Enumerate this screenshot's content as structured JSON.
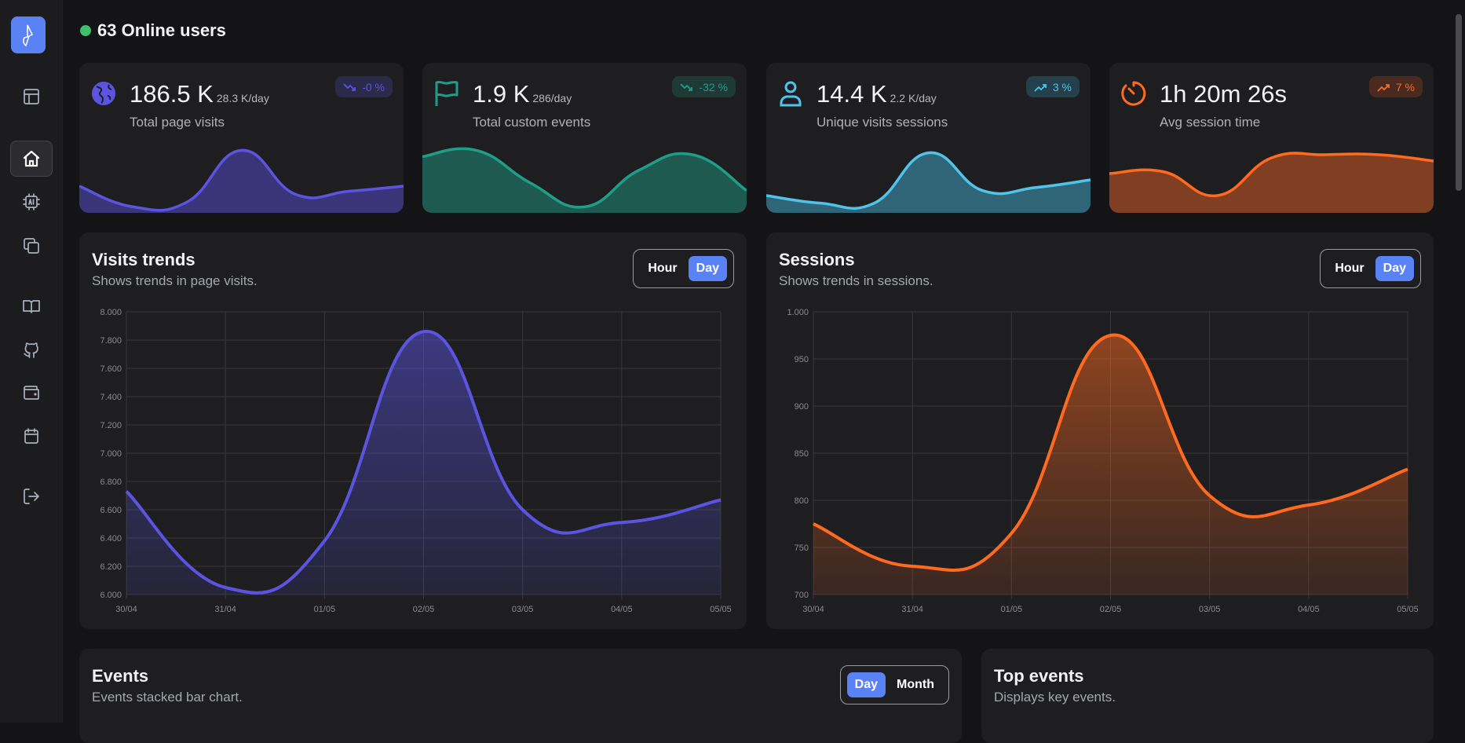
{
  "header": {
    "online_count_label": "63 Online users",
    "online_color": "#3fbf6b"
  },
  "sidebar": {
    "items": [
      {
        "name": "layout",
        "icon": "layout-icon"
      },
      {
        "name": "home",
        "icon": "home-icon",
        "active": true
      },
      {
        "name": "ai",
        "icon": "ai-chip-icon"
      },
      {
        "name": "copy",
        "icon": "copy-icon"
      },
      {
        "name": "docs",
        "icon": "book-icon"
      },
      {
        "name": "github",
        "icon": "github-icon"
      },
      {
        "name": "wallet",
        "icon": "wallet-icon"
      },
      {
        "name": "calendar",
        "icon": "calendar-icon"
      },
      {
        "name": "logout",
        "icon": "logout-icon"
      }
    ]
  },
  "cards": [
    {
      "value": "186.5 K",
      "per_day": "28.3 K/day",
      "label": "Total page visits",
      "badge": "-0 %",
      "trend": "down",
      "icon": "globe-icon",
      "color": "#5b54e0",
      "fill": "#3a3578",
      "badge_bg": "#2b2a4a",
      "spark": [
        0.35,
        0.02,
        0.1,
        0.92,
        0.22,
        0.27,
        0.35
      ]
    },
    {
      "value": "1.9 K",
      "per_day": "286/day",
      "label": "Total custom events",
      "badge": "-32 %",
      "trend": "down",
      "icon": "flag-icon",
      "color": "#1e9e88",
      "fill": "#1f5a50",
      "badge_bg": "#1d3a35",
      "spark": [
        0.82,
        0.92,
        0.4,
        0.02,
        0.6,
        0.85,
        0.28
      ]
    },
    {
      "value": "14.4 K",
      "per_day": "2.2 K/day",
      "label": "Unique visits sessions",
      "badge": "3 %",
      "trend": "up",
      "icon": "user-icon",
      "color": "#4fc3ea",
      "fill": "#306578",
      "badge_bg": "#24404c",
      "spark": [
        0.2,
        0.08,
        0.08,
        0.88,
        0.28,
        0.33,
        0.45
      ]
    },
    {
      "value": "1h 20m 26s",
      "per_day": "",
      "label": "Avg session time",
      "badge": "7 %",
      "trend": "up",
      "icon": "timer-icon",
      "color": "#ff6a1f",
      "fill": "#803f22",
      "badge_bg": "#4a2a1f",
      "spark": [
        0.55,
        0.58,
        0.2,
        0.8,
        0.85,
        0.85,
        0.75
      ]
    }
  ],
  "visits": {
    "title": "Visits trends",
    "subtitle": "Shows trends in page visits.",
    "toggle": [
      "Hour",
      "Day"
    ],
    "selected": "Day"
  },
  "sessions": {
    "title": "Sessions",
    "subtitle": "Shows trends in sessions.",
    "toggle": [
      "Hour",
      "Day"
    ],
    "selected": "Day"
  },
  "events": {
    "title": "Events",
    "subtitle": "Events stacked bar chart.",
    "toggle": [
      "Day",
      "Month"
    ],
    "selected": "Day"
  },
  "top_events": {
    "title": "Top events",
    "subtitle": "Displays key events."
  },
  "chart_data": [
    {
      "type": "line",
      "title": "",
      "xlabel": "",
      "ylabel": "",
      "categories": [
        "30/04",
        "31/04",
        "01/05",
        "02/05",
        "03/05",
        "04/05",
        "05/05"
      ],
      "values": [
        6730,
        6050,
        6380,
        7860,
        6600,
        6510,
        6670
      ],
      "ylim": [
        6000,
        8000
      ],
      "yticks": [
        "6.000",
        "6.200",
        "6.400",
        "6.600",
        "6.800",
        "7.000",
        "7.200",
        "7.400",
        "7.600",
        "7.800",
        "8.000"
      ],
      "grid": true,
      "color": "#5b54e0"
    },
    {
      "type": "line",
      "title": "",
      "xlabel": "",
      "ylabel": "",
      "categories": [
        "30/04",
        "31/04",
        "01/05",
        "02/05",
        "03/05",
        "04/05",
        "05/05"
      ],
      "values": [
        775,
        730,
        765,
        975,
        805,
        795,
        833
      ],
      "ylim": [
        700,
        1000
      ],
      "yticks": [
        "700",
        "750",
        "800",
        "850",
        "900",
        "950",
        "1.000"
      ],
      "grid": true,
      "color": "#ff6a1f"
    }
  ],
  "accent": "#5b82f5"
}
